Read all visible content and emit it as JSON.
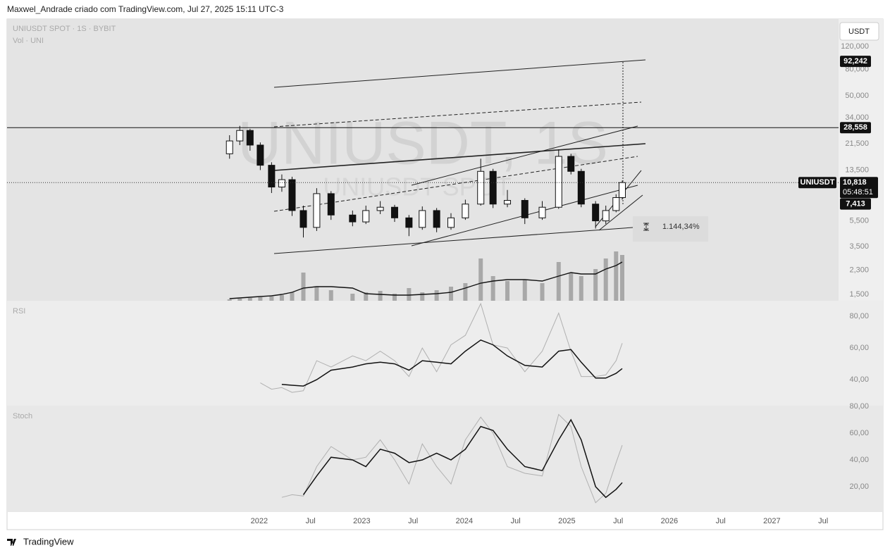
{
  "header": "Maxwel_Andrade criado com TradingView.com, Jul 27, 2025 15:11 UTC-3",
  "footer": "TradingView",
  "currency_button": "USDT",
  "chart_data": [
    {
      "type": "candlestick",
      "title": "UNIUSDT SPOT · 1S · BYBIT",
      "watermark": "UNIUSDT, 1S",
      "watermark_sub": "UNIUSDT SPOT",
      "x": [
        2021.71,
        2021.81,
        2021.91,
        2022.01,
        2022.12,
        2022.22,
        2022.32,
        2022.43,
        2022.56,
        2022.7,
        2022.91,
        2023.04,
        2023.18,
        2023.32,
        2023.46,
        2023.59,
        2023.73,
        2023.87,
        2024.01,
        2024.16,
        2024.28,
        2024.42,
        2024.59,
        2024.76,
        2024.92,
        2025.04,
        2025.14,
        2025.28,
        2025.38,
        2025.48,
        2025.54
      ],
      "open": [
        18,
        22.6,
        27.2,
        21,
        14.7,
        10,
        11.4,
        6.6,
        4.9,
        8.9,
        6.1,
        5.4,
        6.6,
        7,
        5.8,
        4.9,
        6.6,
        4.9,
        5.8,
        7.4,
        13.2,
        7.4,
        7.9,
        5.8,
        7,
        17.2,
        13.2,
        7.4,
        5.5,
        6.6,
        8.3
      ],
      "high": [
        25,
        29.5,
        28,
        22,
        15.5,
        12.5,
        12,
        7.2,
        9.8,
        9.3,
        6.6,
        7.2,
        7.8,
        7.3,
        6.1,
        7.1,
        6.9,
        6.3,
        8,
        16.5,
        13.8,
        9.5,
        8.2,
        7.8,
        19.5,
        18,
        13.8,
        7.8,
        7.2,
        8.8,
        11.2
      ],
      "low": [
        16.5,
        21,
        19,
        13.5,
        9,
        9.2,
        6,
        4.1,
        4.6,
        5.6,
        5,
        5.2,
        6.2,
        5.4,
        4.2,
        4.7,
        4.5,
        4.7,
        5.6,
        7.2,
        6.9,
        7,
        5.2,
        5.6,
        6.8,
        12.5,
        7,
        4.8,
        5.2,
        6.4,
        8
      ],
      "close": [
        22.6,
        27.2,
        21,
        14.7,
        10,
        11.4,
        6.6,
        4.9,
        8.9,
        6.1,
        5.4,
        6.6,
        7,
        5.8,
        4.9,
        6.6,
        4.9,
        5.8,
        7.4,
        13.2,
        7.4,
        7.9,
        5.8,
        7,
        17.2,
        13.2,
        7.4,
        5.5,
        6.6,
        8.3,
        10.818
      ],
      "up_color": "#ffffff",
      "down_color": "#111111",
      "xlim": [
        2019.54,
        2027.65
      ],
      "xticks": [
        {
          "value": 2022,
          "label": "2022"
        },
        {
          "value": 2022.5,
          "label": "Jul"
        },
        {
          "value": 2023,
          "label": "2023"
        },
        {
          "value": 2023.5,
          "label": "Jul"
        },
        {
          "value": 2024,
          "label": "2024"
        },
        {
          "value": 2024.5,
          "label": "Jul"
        },
        {
          "value": 2025,
          "label": "2025"
        },
        {
          "value": 2025.5,
          "label": "Jul"
        },
        {
          "value": 2026,
          "label": "2026"
        },
        {
          "value": 2026.5,
          "label": "Jul"
        },
        {
          "value": 2027,
          "label": "2027"
        },
        {
          "value": 2027.5,
          "label": "Jul"
        }
      ],
      "ylim": [
        1.34,
        195
      ],
      "log_scale": true,
      "grid": false,
      "yticks": [
        {
          "value": 1.5,
          "label": "1,500"
        },
        {
          "value": 2.3,
          "label": "2,300"
        },
        {
          "value": 3.5,
          "label": "3,500"
        },
        {
          "value": 5.5,
          "label": "5,500"
        },
        {
          "value": 13.5,
          "label": "13,500"
        },
        {
          "value": 21.5,
          "label": "21,500"
        },
        {
          "value": 34,
          "label": "34,000"
        },
        {
          "value": 50,
          "label": "50,000"
        },
        {
          "value": 80,
          "label": "80,000"
        },
        {
          "value": 120,
          "label": "120,000"
        }
      ],
      "price_labels": [
        {
          "value": 92.242,
          "label": "92,242",
          "line": "none"
        },
        {
          "value": 28.558,
          "label": "28,558",
          "line": "solid"
        },
        {
          "value": 7.413,
          "label": "7,413",
          "line": "none"
        }
      ],
      "last_price": {
        "name": "UNIUSDT",
        "value": 10.818,
        "label": "10,818",
        "countdown": "05:48:51"
      },
      "measure": {
        "value": 1144.34,
        "label": "1.144,34%"
      }
    },
    {
      "type": "bar",
      "title": "Vol · UNI",
      "color": "#a8a8a8",
      "ma_color": "#111111",
      "values": [
        2,
        3,
        4,
        5,
        6,
        8,
        12,
        40,
        20,
        15,
        10,
        12,
        14,
        10,
        18,
        12,
        15,
        20,
        25,
        60,
        35,
        28,
        30,
        25,
        55,
        40,
        35,
        45,
        60,
        70,
        65
      ],
      "ma_values": [
        3,
        4,
        5,
        6,
        7,
        9,
        12,
        18,
        20,
        20,
        18,
        10,
        9,
        8,
        8,
        9,
        10,
        12,
        18,
        25,
        28,
        30,
        30,
        28,
        35,
        40,
        38,
        38,
        45,
        50,
        55
      ],
      "ylim": [
        0,
        100
      ]
    },
    {
      "type": "line",
      "title": "RSI",
      "series": [
        {
          "color": "#b0b0b0",
          "values": [
            null,
            null,
            null,
            38,
            34,
            35,
            32,
            33,
            52,
            48,
            55,
            52,
            58,
            52,
            42,
            60,
            45,
            62,
            68,
            88,
            62,
            60,
            45,
            58,
            82,
            58,
            42,
            42,
            43,
            52,
            63
          ]
        },
        {
          "color": "#111111",
          "values": [
            null,
            null,
            null,
            null,
            null,
            37,
            36.5,
            36,
            40,
            46,
            48,
            50,
            51,
            50,
            46,
            52,
            51,
            50,
            58,
            65,
            62,
            55,
            49,
            48,
            58,
            59,
            51,
            41,
            41,
            44,
            47
          ]
        }
      ],
      "ylim": [
        23.6,
        89.8
      ],
      "yticks": [
        {
          "value": 40,
          "label": "40,00"
        },
        {
          "value": 60,
          "label": "60,00"
        },
        {
          "value": 80,
          "label": "80,00"
        }
      ]
    },
    {
      "type": "line",
      "title": "Stoch",
      "series": [
        {
          "color": "#b0b0b0",
          "values": [
            null,
            null,
            null,
            null,
            null,
            12,
            14,
            13,
            35,
            50,
            40,
            42,
            55,
            40,
            22,
            52,
            35,
            22,
            55,
            72,
            60,
            35,
            30,
            28,
            74,
            65,
            35,
            8,
            15,
            38,
            51
          ]
        },
        {
          "color": "#111111",
          "values": [
            null,
            null,
            null,
            null,
            null,
            null,
            null,
            14,
            28,
            42,
            40,
            35,
            48,
            45,
            38,
            40,
            45,
            40,
            48,
            65,
            62,
            48,
            35,
            32,
            55,
            70,
            55,
            20,
            12,
            18,
            23
          ]
        }
      ],
      "ylim": [
        1.05,
        80.5
      ],
      "yticks": [
        {
          "value": 20,
          "label": "20,00"
        },
        {
          "value": 40,
          "label": "40,00"
        },
        {
          "value": 60,
          "label": "60,00"
        },
        {
          "value": 80,
          "label": "80,00"
        }
      ]
    }
  ]
}
